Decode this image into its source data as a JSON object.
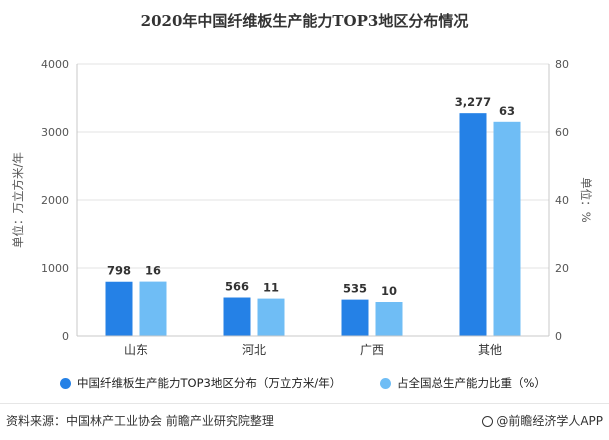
{
  "colors": {
    "series1": "#2581e6",
    "series2": "#6fbdf5",
    "axis": "#c8c8c8",
    "grid": "#e3e3e3",
    "text": "#555555"
  },
  "chart_data": {
    "type": "bar",
    "title": "2020年中国纤维板生产能力TOP3地区分布情况",
    "categories": [
      "山东",
      "河北",
      "广西",
      "其他"
    ],
    "series": [
      {
        "name": "中国纤维板生产能力TOP3地区分布（万立方米/年）",
        "axis": "left",
        "values": [
          798,
          566,
          535,
          3277
        ],
        "labels": [
          "798",
          "566",
          "535",
          "3,277"
        ]
      },
      {
        "name": "占全国总生产能力比重（%）",
        "axis": "right",
        "values": [
          16,
          11,
          10,
          63
        ],
        "labels": [
          "16",
          "11",
          "10",
          "63"
        ]
      }
    ],
    "ylabel": "单位：万立方米/年",
    "ylabel_right": "单位：%",
    "ylim": [
      0,
      4000
    ],
    "ylim_right": [
      0,
      80
    ],
    "yticks": [
      "0",
      "1000",
      "2000",
      "3000",
      "4000"
    ],
    "yticks_right": [
      "0",
      "20",
      "40",
      "60",
      "80"
    ],
    "grid": true,
    "legend": "bottom"
  },
  "footer": {
    "source": "资料来源：中国林产工业协会 前瞻产业研究院整理",
    "brand": "@前瞻经济学人APP"
  }
}
